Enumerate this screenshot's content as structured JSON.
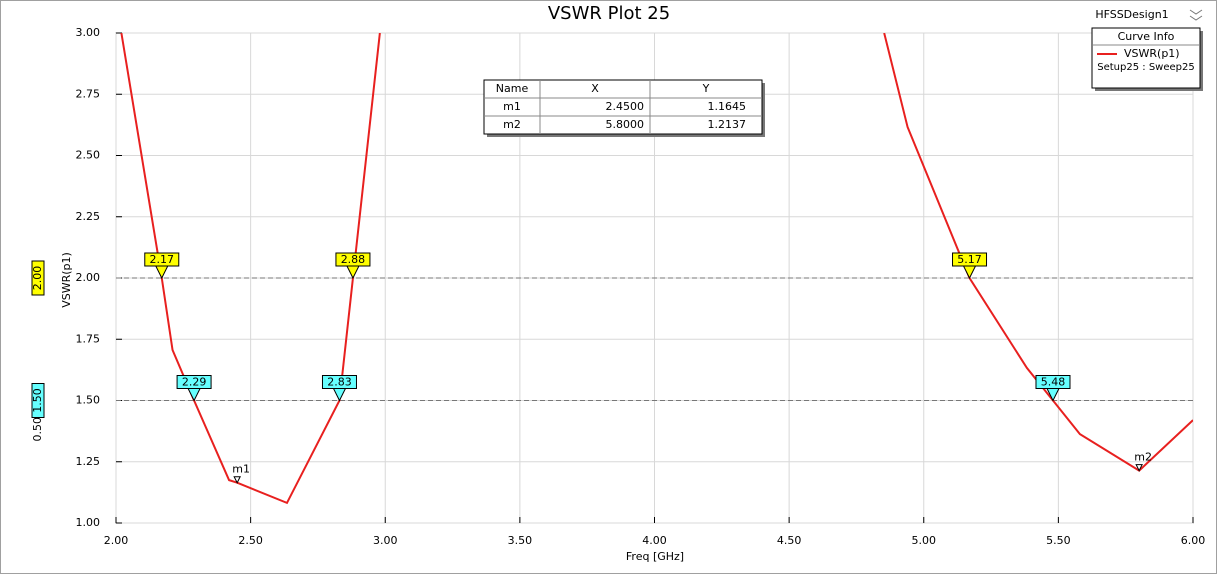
{
  "chart_data": {
    "type": "line",
    "title": "VSWR Plot 25",
    "design": "HFSSDesign1",
    "x_label": "Freq [GHz]",
    "y_label": "VSWR(p1)",
    "x": [
      2.02,
      2.17,
      2.21,
      2.29,
      2.42,
      2.45,
      2.635,
      2.83,
      2.88,
      2.98,
      3.9,
      4.853,
      4.94,
      5.17,
      5.383,
      5.48,
      5.58,
      5.8,
      6.0
    ],
    "series": [
      {
        "name": "VSWR(p1)",
        "color": "#e8201f",
        "values": [
          3.0,
          2.0,
          1.706,
          1.5,
          1.175,
          1.1645,
          1.082,
          1.5,
          2.0,
          3.0,
          null,
          3.0,
          2.616,
          2.0,
          1.633,
          1.5,
          1.363,
          1.2137,
          1.42
        ]
      }
    ],
    "xlim": [
      2,
      6
    ],
    "xticks": [
      {
        "value": 2,
        "label": "2.00"
      },
      {
        "value": 2.5,
        "label": "2.50"
      },
      {
        "value": 3,
        "label": "3.00"
      },
      {
        "value": 3.5,
        "label": "3.50"
      },
      {
        "value": 4,
        "label": "4.00"
      },
      {
        "value": 4.5,
        "label": "4.50"
      },
      {
        "value": 5,
        "label": "5.00"
      },
      {
        "value": 5.5,
        "label": "5.50"
      },
      {
        "value": 6,
        "label": "6.00"
      }
    ],
    "ylim": [
      1,
      3
    ],
    "yticks": [
      {
        "value": 1,
        "label": "1.00"
      },
      {
        "value": 1.25,
        "label": "1.25"
      },
      {
        "value": 1.5,
        "label": "1.50"
      },
      {
        "value": 1.75,
        "label": "1.75"
      },
      {
        "value": 2,
        "label": "2.00"
      },
      {
        "value": 2.25,
        "label": "2.25"
      },
      {
        "value": 2.5,
        "label": "2.50"
      },
      {
        "value": 2.75,
        "label": "2.75"
      },
      {
        "value": 3,
        "label": "3.00"
      }
    ],
    "grid": true,
    "levels": [
      {
        "value": 2,
        "label": "2.00",
        "color": "#ffff00",
        "crossings": [
          2.17,
          2.88,
          5.17
        ]
      },
      {
        "value": 1.5,
        "label": "1.50",
        "color": "#66ffff",
        "crossings": [
          2.29,
          2.83,
          5.48
        ]
      }
    ],
    "level_difference": {
      "value": 0.5,
      "label": "0.50"
    },
    "markers": [
      {
        "name": "m1",
        "x": {
          "value": 2.45,
          "label": "2.4500"
        },
        "y": {
          "value": 1.1645,
          "label": "1.1645"
        }
      },
      {
        "name": "m2",
        "x": {
          "value": 5.8,
          "label": "5.8000"
        },
        "y": {
          "value": 1.2137,
          "label": "1.2137"
        }
      }
    ],
    "marker_table_headers": [
      "Name",
      "X",
      "Y"
    ],
    "curve_info": {
      "title": "Curve Info",
      "setup": "Setup25 : Sweep25"
    }
  }
}
